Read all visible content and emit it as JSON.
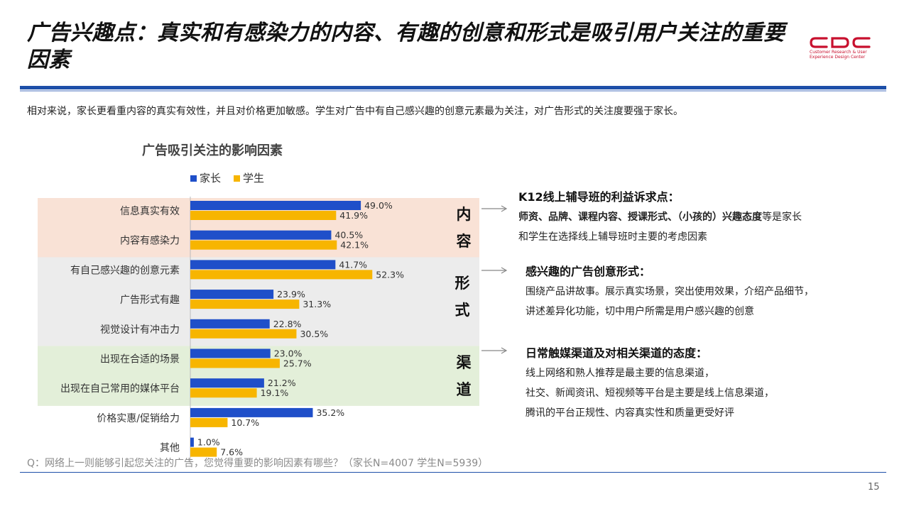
{
  "header": {
    "title": "广告兴趣点：真实和有感染力的内容、有趣的创意和形式是吸引用户关注的重要因素",
    "logo_text": "CDC",
    "logo_sub": "Customer Research & User Experience Design Center"
  },
  "subtitle": "相对来说，家长更看重内容的真实有效性，并且对价格更加敏感。学生对广告中有自己感兴趣的创意元素最为关注，对广告形式的关注度要强于家长。",
  "colors": {
    "parent": "#1f4fc9",
    "student": "#f7b500",
    "content_bg": "#f9e2d6",
    "form_bg": "#ececec",
    "channel_bg": "#e3efd9",
    "accent": "#1d4fa8"
  },
  "chart_data": {
    "type": "bar",
    "orientation": "horizontal",
    "title": "广告吸引关注的影响因素",
    "categories": [
      "信息真实有效",
      "内容有感染力",
      "有自己感兴趣的创意元素",
      "广告形式有趣",
      "视觉设计有冲击力",
      "出现在合适的场景",
      "出现在自己常用的媒体平台",
      "价格实惠/促销给力",
      "其他"
    ],
    "series": [
      {
        "name": "家长",
        "values": [
          49.0,
          40.5,
          41.7,
          23.9,
          22.8,
          23.0,
          21.2,
          35.2,
          1.0
        ]
      },
      {
        "name": "学生",
        "values": [
          41.9,
          42.1,
          52.3,
          31.3,
          30.5,
          25.7,
          19.1,
          10.7,
          7.6
        ]
      }
    ],
    "value_labels": {
      "parent": [
        "49.0%",
        "40.5%",
        "41.7%",
        "23.9%",
        "22.8%",
        "23.0%",
        "21.2%",
        "35.2%",
        "1.0%"
      ],
      "student": [
        "41.9%",
        "42.1%",
        "52.3%",
        "31.3%",
        "30.5%",
        "25.7%",
        "19.1%",
        "10.7%",
        "7.6%"
      ]
    },
    "xlim": [
      0,
      100
    ],
    "legend_position": "top",
    "groups": [
      {
        "label": "内容",
        "rows": [
          0,
          1
        ]
      },
      {
        "label": "形式",
        "rows": [
          2,
          3,
          4
        ]
      },
      {
        "label": "渠道",
        "rows": [
          5,
          6
        ]
      }
    ]
  },
  "group_labels": {
    "content": [
      "内",
      "容"
    ],
    "form": [
      "形",
      "式"
    ],
    "channel": [
      "渠",
      "道"
    ]
  },
  "panels": {
    "k12": {
      "heading": "K12线上辅导班的利益诉求点：",
      "line1_bold": "师资、品牌、课程内容、授课形式、（小孩的）兴趣态度",
      "line1_rest": "等是家长",
      "line2": "和学生在选择线上辅导班时主要的考虑因素"
    },
    "creative": {
      "heading": "感兴趣的广告创意形式：",
      "line1": "围绕产品讲故事。展示真实场景，突出使用效果，介绍产品细节，",
      "line2": "讲述差异化功能，切中用户所需是用户感兴趣的创意"
    },
    "channel": {
      "heading": "日常触媒渠道及对相关渠道的态度：",
      "line1": "线上网络和熟人推荐是最主要的信息渠道，",
      "line2": "社交、新闻资讯、短视频等平台是主要是线上信息渠道，",
      "line3": "腾讯的平台正规性、内容真实性和质量更受好评"
    }
  },
  "footnote": "Q：网络上一则能够引起您关注的广告，您觉得重要的影响因素有哪些？（家长N=4007      学生N=5939）",
  "page_number": "15"
}
